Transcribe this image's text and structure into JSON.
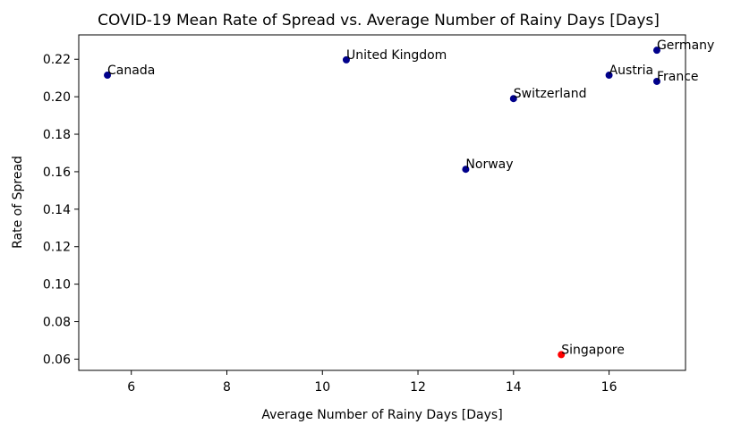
{
  "chart_data": {
    "type": "scatter",
    "title": "COVID-19 Mean Rate of Spread vs. Average Number of Rainy Days [Days]",
    "xlabel": "Average Number of Rainy Days [Days]",
    "ylabel": "Rate of Spread",
    "xlim": [
      4.9,
      17.6
    ],
    "ylim": [
      0.054,
      0.233
    ],
    "xticks": [
      6,
      8,
      10,
      12,
      14,
      16
    ],
    "yticks": [
      0.06,
      0.08,
      0.1,
      0.12,
      0.14,
      0.16,
      0.18,
      0.2,
      0.22
    ],
    "ytick_labels": [
      "0.06",
      "0.08",
      "0.10",
      "0.12",
      "0.14",
      "0.16",
      "0.18",
      "0.20",
      "0.22"
    ],
    "grid": false,
    "colors": {
      "default": "#00008b",
      "highlight": "#ff0000"
    },
    "points": [
      {
        "label": "Canada",
        "x": 5.5,
        "y": 0.2115,
        "color": "#00008b"
      },
      {
        "label": "United Kingdom",
        "x": 10.5,
        "y": 0.2197,
        "color": "#00008b"
      },
      {
        "label": "Switzerland",
        "x": 14.0,
        "y": 0.199,
        "color": "#00008b"
      },
      {
        "label": "Norway",
        "x": 13.0,
        "y": 0.1613,
        "color": "#00008b"
      },
      {
        "label": "Austria",
        "x": 16.0,
        "y": 0.2115,
        "color": "#00008b"
      },
      {
        "label": "Germany",
        "x": 17.0,
        "y": 0.2248,
        "color": "#00008b"
      },
      {
        "label": "France",
        "x": 17.0,
        "y": 0.2082,
        "color": "#00008b"
      },
      {
        "label": "Singapore",
        "x": 15.0,
        "y": 0.0624,
        "color": "#ff0000"
      }
    ]
  }
}
